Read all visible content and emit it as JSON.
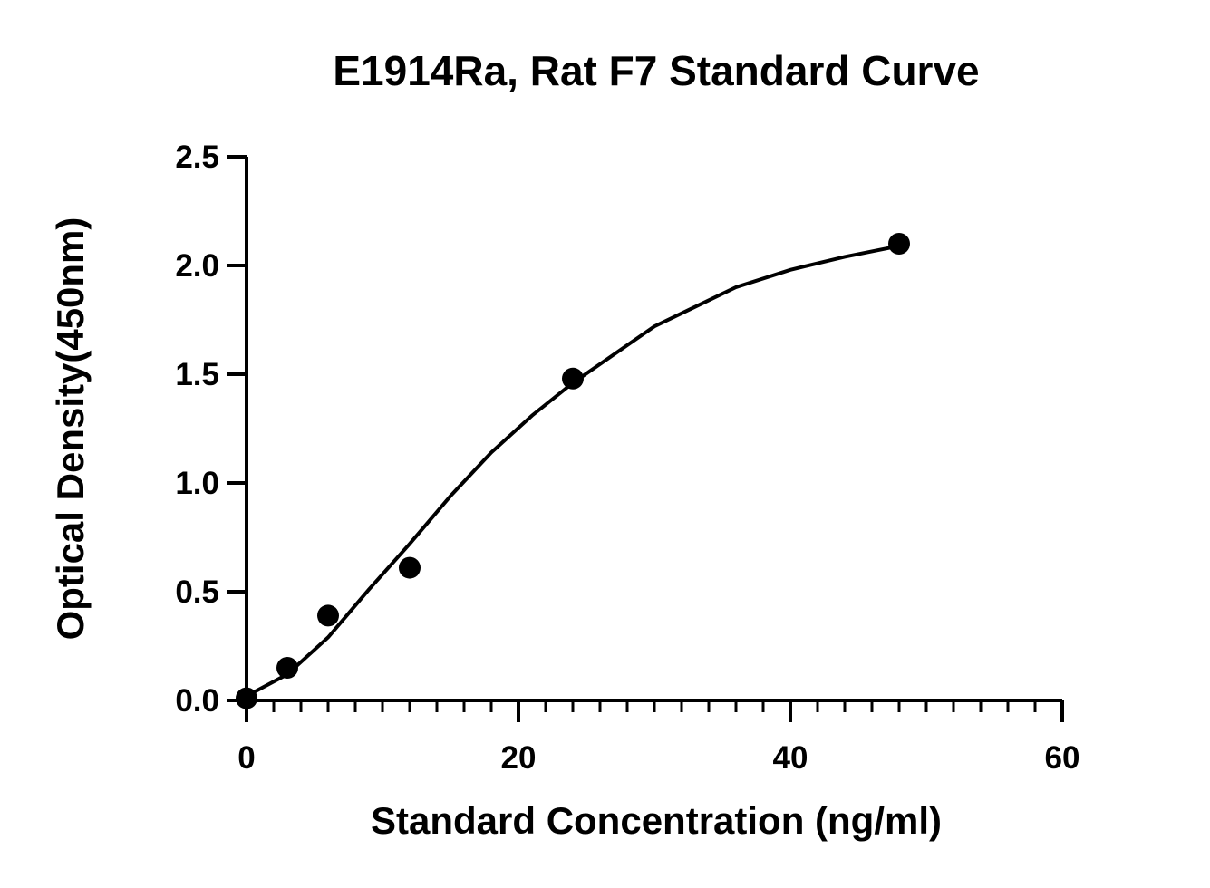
{
  "chart_data": {
    "type": "scatter",
    "title": "E1914Ra, Rat F7 Standard Curve",
    "x_label": "Standard Concentration (ng/ml)",
    "y_label": "Optical Density(450nm)",
    "color": "#000000",
    "series": [
      {
        "x": [
          0,
          3,
          6,
          12,
          24,
          48
        ],
        "values": [
          0.01,
          0.15,
          0.39,
          0.61,
          1.48,
          2.1
        ]
      }
    ],
    "fit_curve": {
      "x": [
        0,
        3,
        6,
        9,
        12,
        15,
        18,
        21,
        24,
        30,
        36,
        40,
        44,
        48
      ],
      "values": [
        0.02,
        0.12,
        0.29,
        0.51,
        0.72,
        0.94,
        1.14,
        1.31,
        1.46,
        1.72,
        1.9,
        1.98,
        2.04,
        2.09
      ]
    },
    "xlim": [
      0,
      60
    ],
    "xticks": [
      0,
      20,
      40,
      60
    ],
    "x_minor_ticks": [
      2,
      4,
      6,
      8,
      10,
      12,
      14,
      16,
      18,
      22,
      24,
      26,
      28,
      30,
      32,
      34,
      36,
      38,
      42,
      44,
      46,
      48,
      50,
      52,
      54,
      56,
      58
    ],
    "ylim": [
      0,
      2.5
    ],
    "yticks": [
      {
        "value": 0,
        "label": "0.0"
      },
      0.5,
      {
        "value": 1,
        "label": "1.0"
      },
      1.5,
      {
        "value": 2,
        "label": "2.0"
      },
      2.5
    ]
  }
}
